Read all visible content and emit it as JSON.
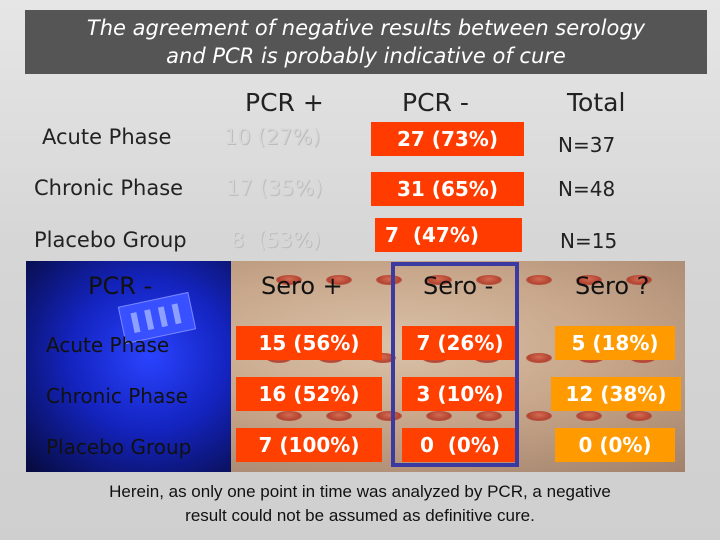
{
  "title": {
    "line1": "The agreement of negative results between serology",
    "line2": "and PCR is probably indicative of cure"
  },
  "upper_table": {
    "headers": [
      "PCR +",
      "PCR -",
      "Total"
    ],
    "rows": [
      {
        "label": "Acute Phase",
        "pcr_plus": "10 (27%)",
        "pcr_minus": "27 (73%)",
        "total": "N=37"
      },
      {
        "label": "Chronic Phase",
        "pcr_plus": "17 (35%)",
        "pcr_minus": "31 (65%)",
        "total": "N=48"
      },
      {
        "label": "Placebo Group",
        "pcr_plus": "8  (53%)",
        "pcr_minus": "7  (47%)",
        "total": "N=15"
      }
    ]
  },
  "lower_table": {
    "corner": "PCR -",
    "headers": [
      "Sero +",
      "Sero -",
      "Sero ?"
    ],
    "rows": [
      {
        "label": "Acute Phase",
        "sero_plus": "15 (56%)",
        "sero_minus": "7 (26%)",
        "sero_q": "5 (18%)"
      },
      {
        "label": "Chronic Phase",
        "sero_plus": "16 (52%)",
        "sero_minus": "3 (10%)",
        "sero_q": "12 (38%)"
      },
      {
        "label": "Placebo Group",
        "sero_plus": "7 (100%)",
        "sero_minus": "0  (0%)",
        "sero_q": "0 (0%)"
      }
    ]
  },
  "footer": {
    "line1": "Herein, as only one point in time was analyzed by PCR, a negative",
    "line2": "result could not be assumed as definitive cure."
  },
  "colors": {
    "title_bg": "#555555",
    "red_box": "#ff3b00",
    "orange_box": "#ff9a00",
    "highlight_border": "#3a3aa0"
  }
}
